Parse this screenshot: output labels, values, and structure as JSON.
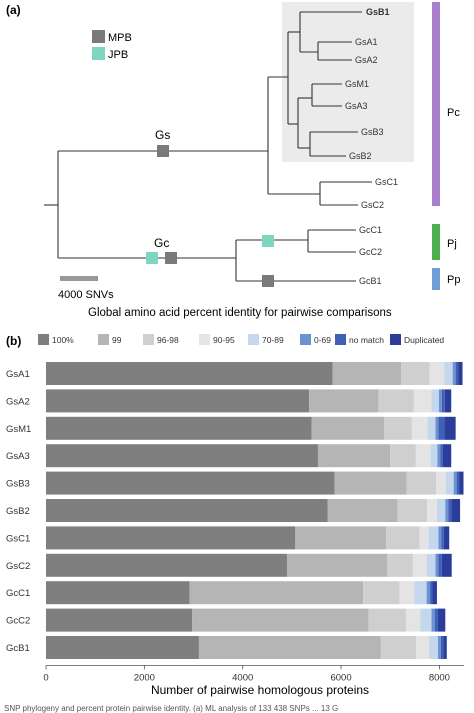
{
  "panel_a": {
    "label": "(a)",
    "legend": [
      {
        "label": "MPB",
        "color": "#7a7a7a"
      },
      {
        "label": "JPB",
        "color": "#7fd6c0"
      }
    ],
    "node_labels": {
      "gs": "Gs",
      "gc": "Gc"
    },
    "tips": [
      "GsB1",
      "GsA1",
      "GsA2",
      "GsM1",
      "GsA3",
      "GsB3",
      "GsB2",
      "GsC1",
      "GsC2",
      "GcC1",
      "GcC2",
      "GcB1"
    ],
    "clades": [
      {
        "label": "Pc",
        "color": "#a97fcc"
      },
      {
        "label": "Pj",
        "color": "#4caf50"
      },
      {
        "label": "Pp",
        "color": "#6d9fd6"
      }
    ],
    "scale_label": "4000 SNVs",
    "colors": {
      "highlight_bg": "#ebebeb",
      "branch": "#333333"
    }
  },
  "panel_b": {
    "label": "(b)",
    "caption_above": "Global amino acid percent identity for pairwise comparisons",
    "tail_text": "SNP phylogeny and percent protein pairwise identity. (a) ML analysis of 133 438 SNPs ... 13 G"
  },
  "chart_data": {
    "type": "bar",
    "orientation": "horizontal",
    "stacked": true,
    "categories": [
      "GsA1",
      "GsA2",
      "GsM1",
      "GsA3",
      "GsB3",
      "GsB2",
      "GsC1",
      "GsC2",
      "GcC1",
      "GcC2",
      "GcB1"
    ],
    "series": [
      {
        "name": "100%",
        "color": "#7f7f7f",
        "values": [
          5830,
          5350,
          5400,
          5530,
          5870,
          5730,
          5070,
          4900,
          2920,
          2970,
          3110
        ]
      },
      {
        "name": "99",
        "color": "#b5b5b5",
        "values": [
          1390,
          1410,
          1480,
          1470,
          1460,
          1420,
          1850,
          2040,
          3530,
          3590,
          3700
        ]
      },
      {
        "name": "96-98",
        "color": "#cfcfcf",
        "values": [
          580,
          720,
          560,
          520,
          600,
          600,
          680,
          520,
          740,
          760,
          720
        ]
      },
      {
        "name": "90-95",
        "color": "#e4e4e4",
        "values": [
          300,
          360,
          320,
          300,
          200,
          200,
          180,
          280,
          300,
          290,
          260
        ]
      },
      {
        "name": "70-89",
        "color": "#c5d7ec",
        "values": [
          170,
          150,
          160,
          140,
          160,
          170,
          200,
          180,
          250,
          230,
          180
        ]
      },
      {
        "name": "0-69",
        "color": "#6b93d2",
        "values": [
          60,
          60,
          60,
          60,
          60,
          60,
          60,
          60,
          70,
          70,
          60
        ]
      },
      {
        "name": "no match",
        "color": "#4060b8",
        "values": [
          50,
          60,
          120,
          50,
          50,
          60,
          50,
          70,
          50,
          60,
          50
        ]
      },
      {
        "name": "Duplicated",
        "color": "#2a3d9a",
        "values": [
          90,
          130,
          230,
          170,
          90,
          180,
          110,
          200,
          90,
          150,
          70
        ]
      }
    ],
    "xlim": [
      0,
      8500
    ],
    "xticks": [
      0,
      2000,
      4000,
      6000,
      8000
    ],
    "xlabel": "Number of pairwise homologous proteins",
    "ylabel": "",
    "legend_position": "top"
  }
}
